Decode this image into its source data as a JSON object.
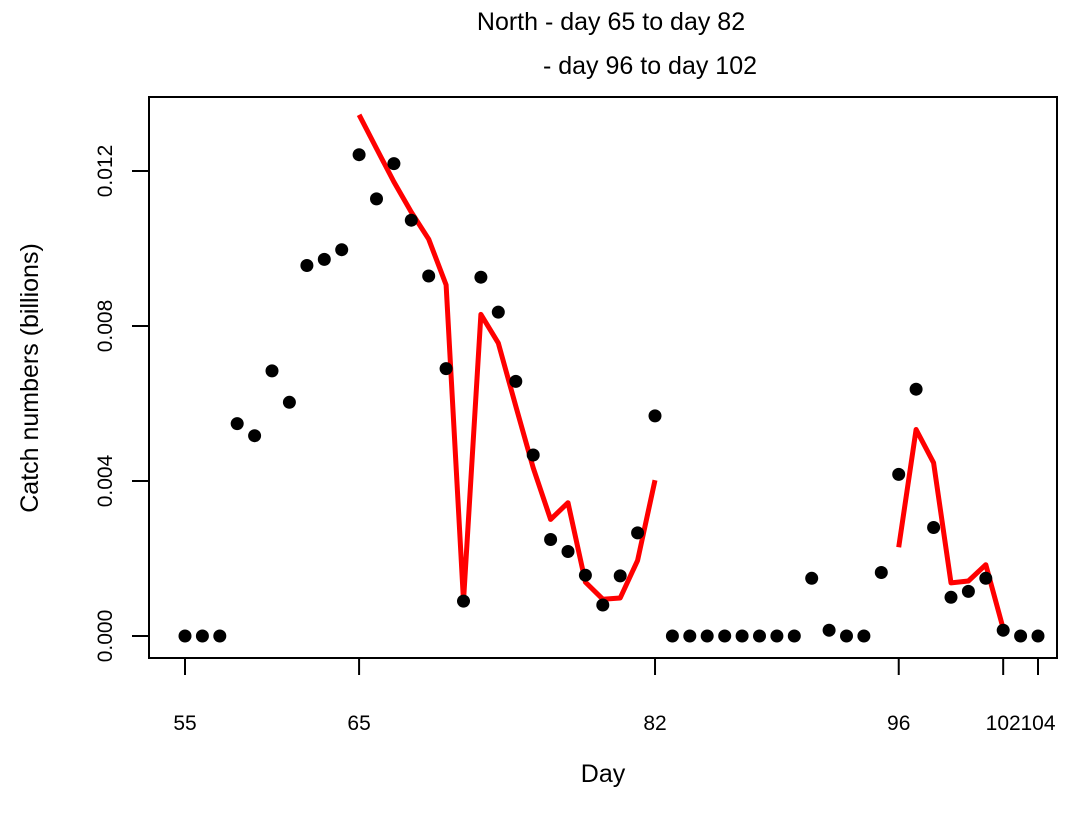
{
  "chart_data": {
    "type": "scatter",
    "title_lines": [
      "North - day 65 to day 82",
      "- day 96 to day 102"
    ],
    "xlabel": "Day",
    "ylabel": "Catch numbers (billions)",
    "xlim": [
      55,
      104
    ],
    "ylim": [
      0,
      0.0135
    ],
    "x_ticks": [
      55,
      65,
      82,
      96,
      102,
      104
    ],
    "y_ticks": [
      "0.000",
      "0.004",
      "0.008",
      "0.012"
    ],
    "y_tick_values": [
      0,
      0.004,
      0.008,
      0.012
    ],
    "grid": false,
    "legend": "none",
    "colors": {
      "points": "#000000",
      "fit": "#ff0000"
    },
    "series": [
      {
        "kind": "points",
        "x": [
          55,
          56,
          57,
          58,
          59,
          60,
          61,
          62,
          63,
          64,
          65,
          66,
          67,
          68,
          69,
          70,
          71,
          72,
          73,
          74,
          75,
          76,
          77,
          78,
          79,
          80,
          81,
          82,
          83,
          84,
          85,
          86,
          87,
          88,
          89,
          90,
          91,
          92,
          93,
          94,
          95,
          96,
          97,
          98,
          99,
          100,
          101,
          102,
          103,
          104
        ],
        "y": [
          0,
          0,
          0,
          0.00548,
          0.00517,
          0.00684,
          0.00603,
          0.00956,
          0.00972,
          0.00997,
          0.01242,
          0.01128,
          0.01219,
          0.01073,
          0.00929,
          0.0069,
          0.0009,
          0.00926,
          0.00836,
          0.00657,
          0.00467,
          0.00249,
          0.00218,
          0.00157,
          0.0008,
          0.00155,
          0.00266,
          0.00568,
          0,
          0,
          0,
          0,
          0,
          0,
          0,
          0,
          0.00149,
          0.00015,
          0,
          0,
          0.00164,
          0.00417,
          0.00637,
          0.0028,
          0.001,
          0.00115,
          0.00149,
          0.00015,
          0,
          0
        ]
      },
      {
        "kind": "line",
        "x": [
          65,
          66,
          67,
          68,
          69,
          70,
          71,
          72,
          73,
          74,
          75,
          76,
          77,
          78,
          79,
          80,
          81,
          82
        ],
        "y": [
          0.01345,
          0.01258,
          0.01172,
          0.01094,
          0.01024,
          0.00906,
          0.0009,
          0.0083,
          0.00756,
          0.00593,
          0.00434,
          0.00301,
          0.00344,
          0.00139,
          0.00095,
          0.00098,
          0.00195,
          0.00402
        ]
      },
      {
        "kind": "line",
        "x": [
          96,
          97,
          98,
          99,
          100,
          101,
          102
        ],
        "y": [
          0.00229,
          0.00533,
          0.00447,
          0.00137,
          0.00142,
          0.00184,
          0.00019
        ]
      }
    ]
  }
}
